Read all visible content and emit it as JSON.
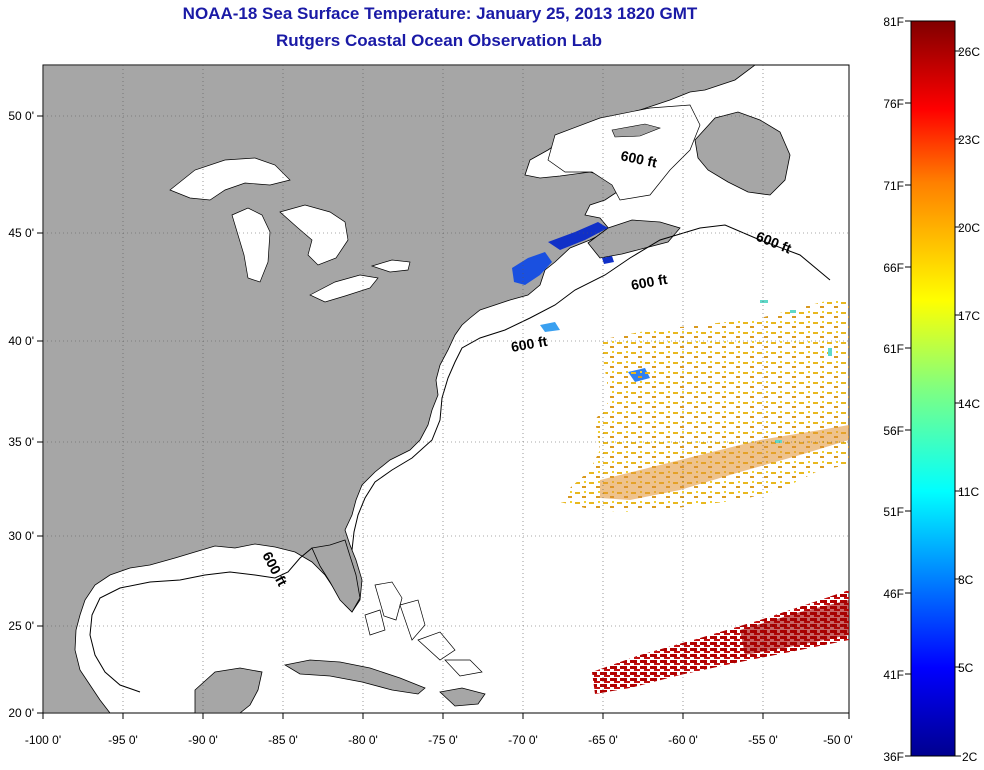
{
  "header": {
    "title": "NOAA-18 Sea Surface Temperature:  January 25, 2013 1820 GMT",
    "subtitle": "Rutgers Coastal Ocean Observation Lab"
  },
  "map": {
    "lon_labels": [
      "-100 0'",
      "-95 0'",
      "-90 0'",
      "-85 0'",
      "-80 0'",
      "-75 0'",
      "-70 0'",
      "-65 0'",
      "-60 0'",
      "-55 0'",
      "-50 0'"
    ],
    "lat_labels": [
      "50 0'",
      "45 0'",
      "40 0'",
      "35 0'",
      "30 0'",
      "25 0'",
      "20 0'"
    ],
    "contour_label": "600 ft",
    "colors": {
      "land": "#a6a6a6",
      "water": "#ffffff",
      "grid": "#555555",
      "title": "#1a1aa6"
    }
  },
  "colorbar": {
    "fahrenheit_labels": [
      "81F",
      "76F",
      "71F",
      "66F",
      "61F",
      "56F",
      "51F",
      "46F",
      "41F",
      "36F"
    ],
    "celsius_labels": [
      "26C",
      "23C",
      "20C",
      "17C",
      "14C",
      "11C",
      "8C",
      "5C",
      "2C"
    ],
    "colors": [
      "#00008f",
      "#0000ff",
      "#0080ff",
      "#00ffff",
      "#80ff80",
      "#ffff00",
      "#ff8000",
      "#ff0000",
      "#800000"
    ]
  }
}
